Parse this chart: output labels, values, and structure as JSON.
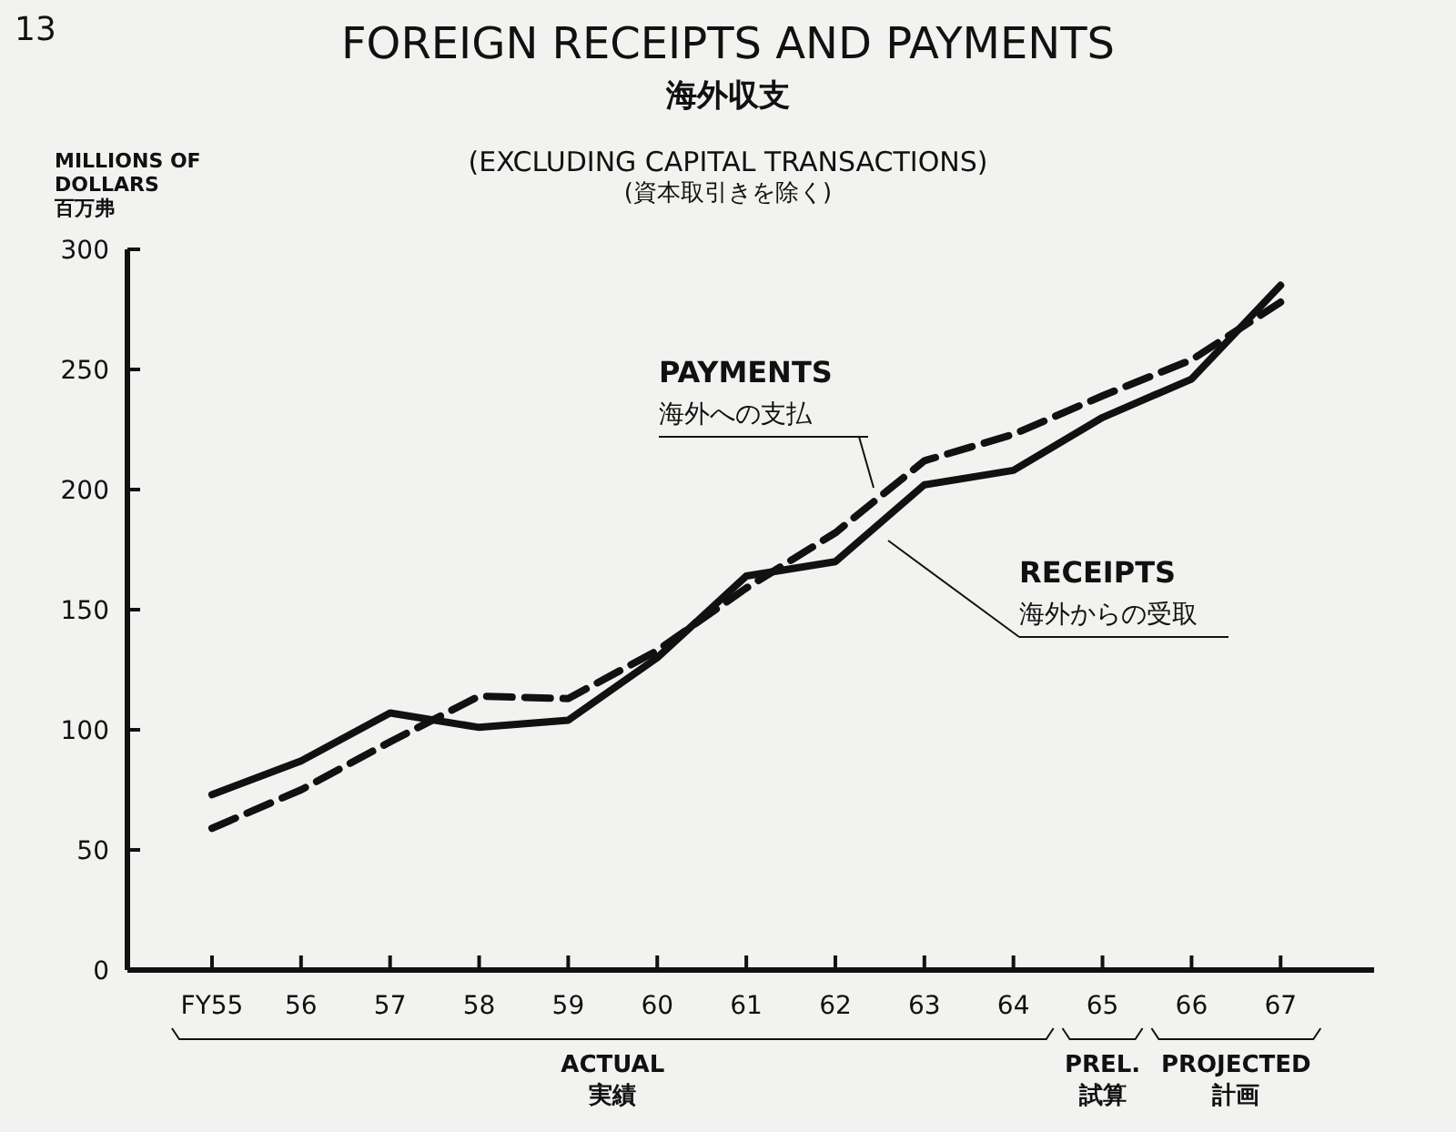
{
  "chart_data": {
    "type": "line",
    "title": "FOREIGN RECEIPTS AND PAYMENTS\n海外収支",
    "subtitle": "(EXCLUDING CAPITAL TRANSACTIONS)\n(資本取引きを除く)",
    "ylabel": "MILLIONS OF\nDOLLARS\n百万弗",
    "categories": [
      "FY55",
      "56",
      "57",
      "58",
      "59",
      "60",
      "61",
      "62",
      "63",
      "64",
      "65",
      "66",
      "67"
    ],
    "series": [
      {
        "name": "PAYMENTS\n海外への支払",
        "color": "#111111",
        "line_style": "dashed",
        "values": [
          59,
          75,
          95,
          114,
          113,
          133,
          159,
          182,
          212,
          223,
          239,
          254,
          278
        ]
      },
      {
        "name": "RECEIPTS\n海外からの受取",
        "color": "#111111",
        "line_style": "solid",
        "values": [
          73,
          87,
          107,
          101,
          104,
          130,
          164,
          170,
          202,
          208,
          230,
          246,
          285
        ]
      }
    ],
    "ylim": [
      0,
      300
    ],
    "yticks": [
      0,
      50,
      100,
      150,
      200,
      250,
      300
    ],
    "grid": false,
    "annotations": [
      "13",
      "ACTUAL\n実績",
      "PREL.\n試算",
      "PROJECTED\n計画"
    ]
  }
}
